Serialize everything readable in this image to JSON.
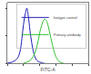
{
  "chart_data": {
    "type": "line",
    "xlabel": "FITC-A",
    "series": [
      {
        "name": "Isotype control",
        "color": "#1f1fb4",
        "x": [
          1,
          2,
          4,
          6,
          8,
          10,
          13,
          16,
          20,
          25,
          32,
          40,
          50,
          63,
          80,
          100,
          130,
          160,
          200
        ],
        "values": [
          0,
          2,
          8,
          20,
          45,
          70,
          90,
          100,
          85,
          60,
          38,
          22,
          12,
          6,
          3,
          2,
          1,
          0,
          0
        ]
      },
      {
        "name": "Primary antibody",
        "color": "#2fc02f",
        "x": [
          10,
          16,
          25,
          40,
          60,
          80,
          100,
          130,
          160,
          200,
          250,
          320,
          400,
          500,
          630,
          800,
          1000,
          1300,
          1600,
          2000,
          3000
        ],
        "values": [
          0,
          2,
          5,
          12,
          25,
          40,
          55,
          68,
          76,
          80,
          78,
          70,
          58,
          45,
          32,
          20,
          12,
          6,
          3,
          1,
          0
        ]
      }
    ],
    "xlim": [
      1,
      100000
    ],
    "xticks": [
      1,
      10,
      100,
      1000,
      10000,
      100000
    ],
    "ylim": [
      0,
      110
    ],
    "yticks": [
      0,
      50,
      100
    ],
    "log": "x",
    "grid": false,
    "legend": "top-right",
    "tick_labels": false
  }
}
